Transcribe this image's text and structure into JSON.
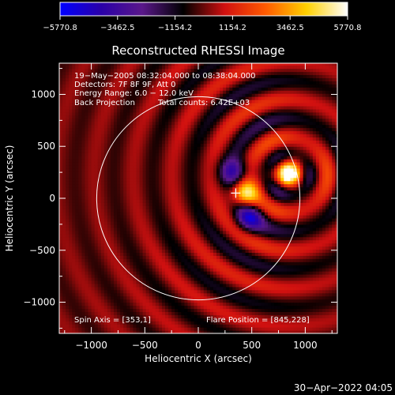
{
  "chart_data": {
    "type": "heatmap",
    "title": "Reconstructed RHESSI Image",
    "xlabel": "Heliocentric X (arcsec)",
    "ylabel": "Heliocentric Y (arcsec)",
    "xlim": [
      -1300,
      1300
    ],
    "ylim": [
      -1300,
      1300
    ],
    "xticks": [
      -1000,
      -500,
      0,
      500,
      1000
    ],
    "yticks": [
      -1000,
      -500,
      0,
      500,
      1000
    ],
    "xtick_labels": [
      "−1000",
      "−500",
      "0",
      "500",
      "1000"
    ],
    "ytick_labels": [
      "−1000",
      "−500",
      "0",
      "500",
      "1000"
    ],
    "colorbar": {
      "min": -5770.8,
      "max": 5770.8,
      "ticks": [
        -5770.8,
        -3462.5,
        -1154.2,
        1154.2,
        3462.5,
        5770.8
      ],
      "tick_labels": [
        "−5770.8",
        "−3462.5",
        "−1154.2",
        "1154.2",
        "3462.5",
        "5770.8"
      ],
      "colors": [
        "#0000ff",
        "#2a00a8",
        "#5a188a",
        "#000000",
        "#d01010",
        "#ff5a00",
        "#ffd000",
        "#ffffff"
      ]
    },
    "annotations": [
      "19−May−2005 08:32:04.000 to 08:38:04.000",
      "Detectors: 7F 8F 9F, Att 0",
      "Energy Range: 6.0 − 12.0 keV",
      "Back Projection",
      "Total counts: 6.42E+03"
    ],
    "spin_axis_label": "Spin Axis = [353,1]",
    "flare_position_label": "Flare Position = [845,228]",
    "flare_position": [
      845,
      228
    ],
    "marker_position": [
      350,
      50
    ],
    "solar_limb_radius": 950,
    "sources": [
      {
        "x": 850,
        "y": 250,
        "value": 5770.8
      },
      {
        "x": 430,
        "y": 50,
        "value": 4800
      },
      {
        "x": 320,
        "y": 260,
        "value": -3200
      },
      {
        "x": 480,
        "y": -180,
        "value": -3600
      }
    ]
  },
  "footer": {
    "timestamp": "30−Apr−2022 04:05"
  }
}
